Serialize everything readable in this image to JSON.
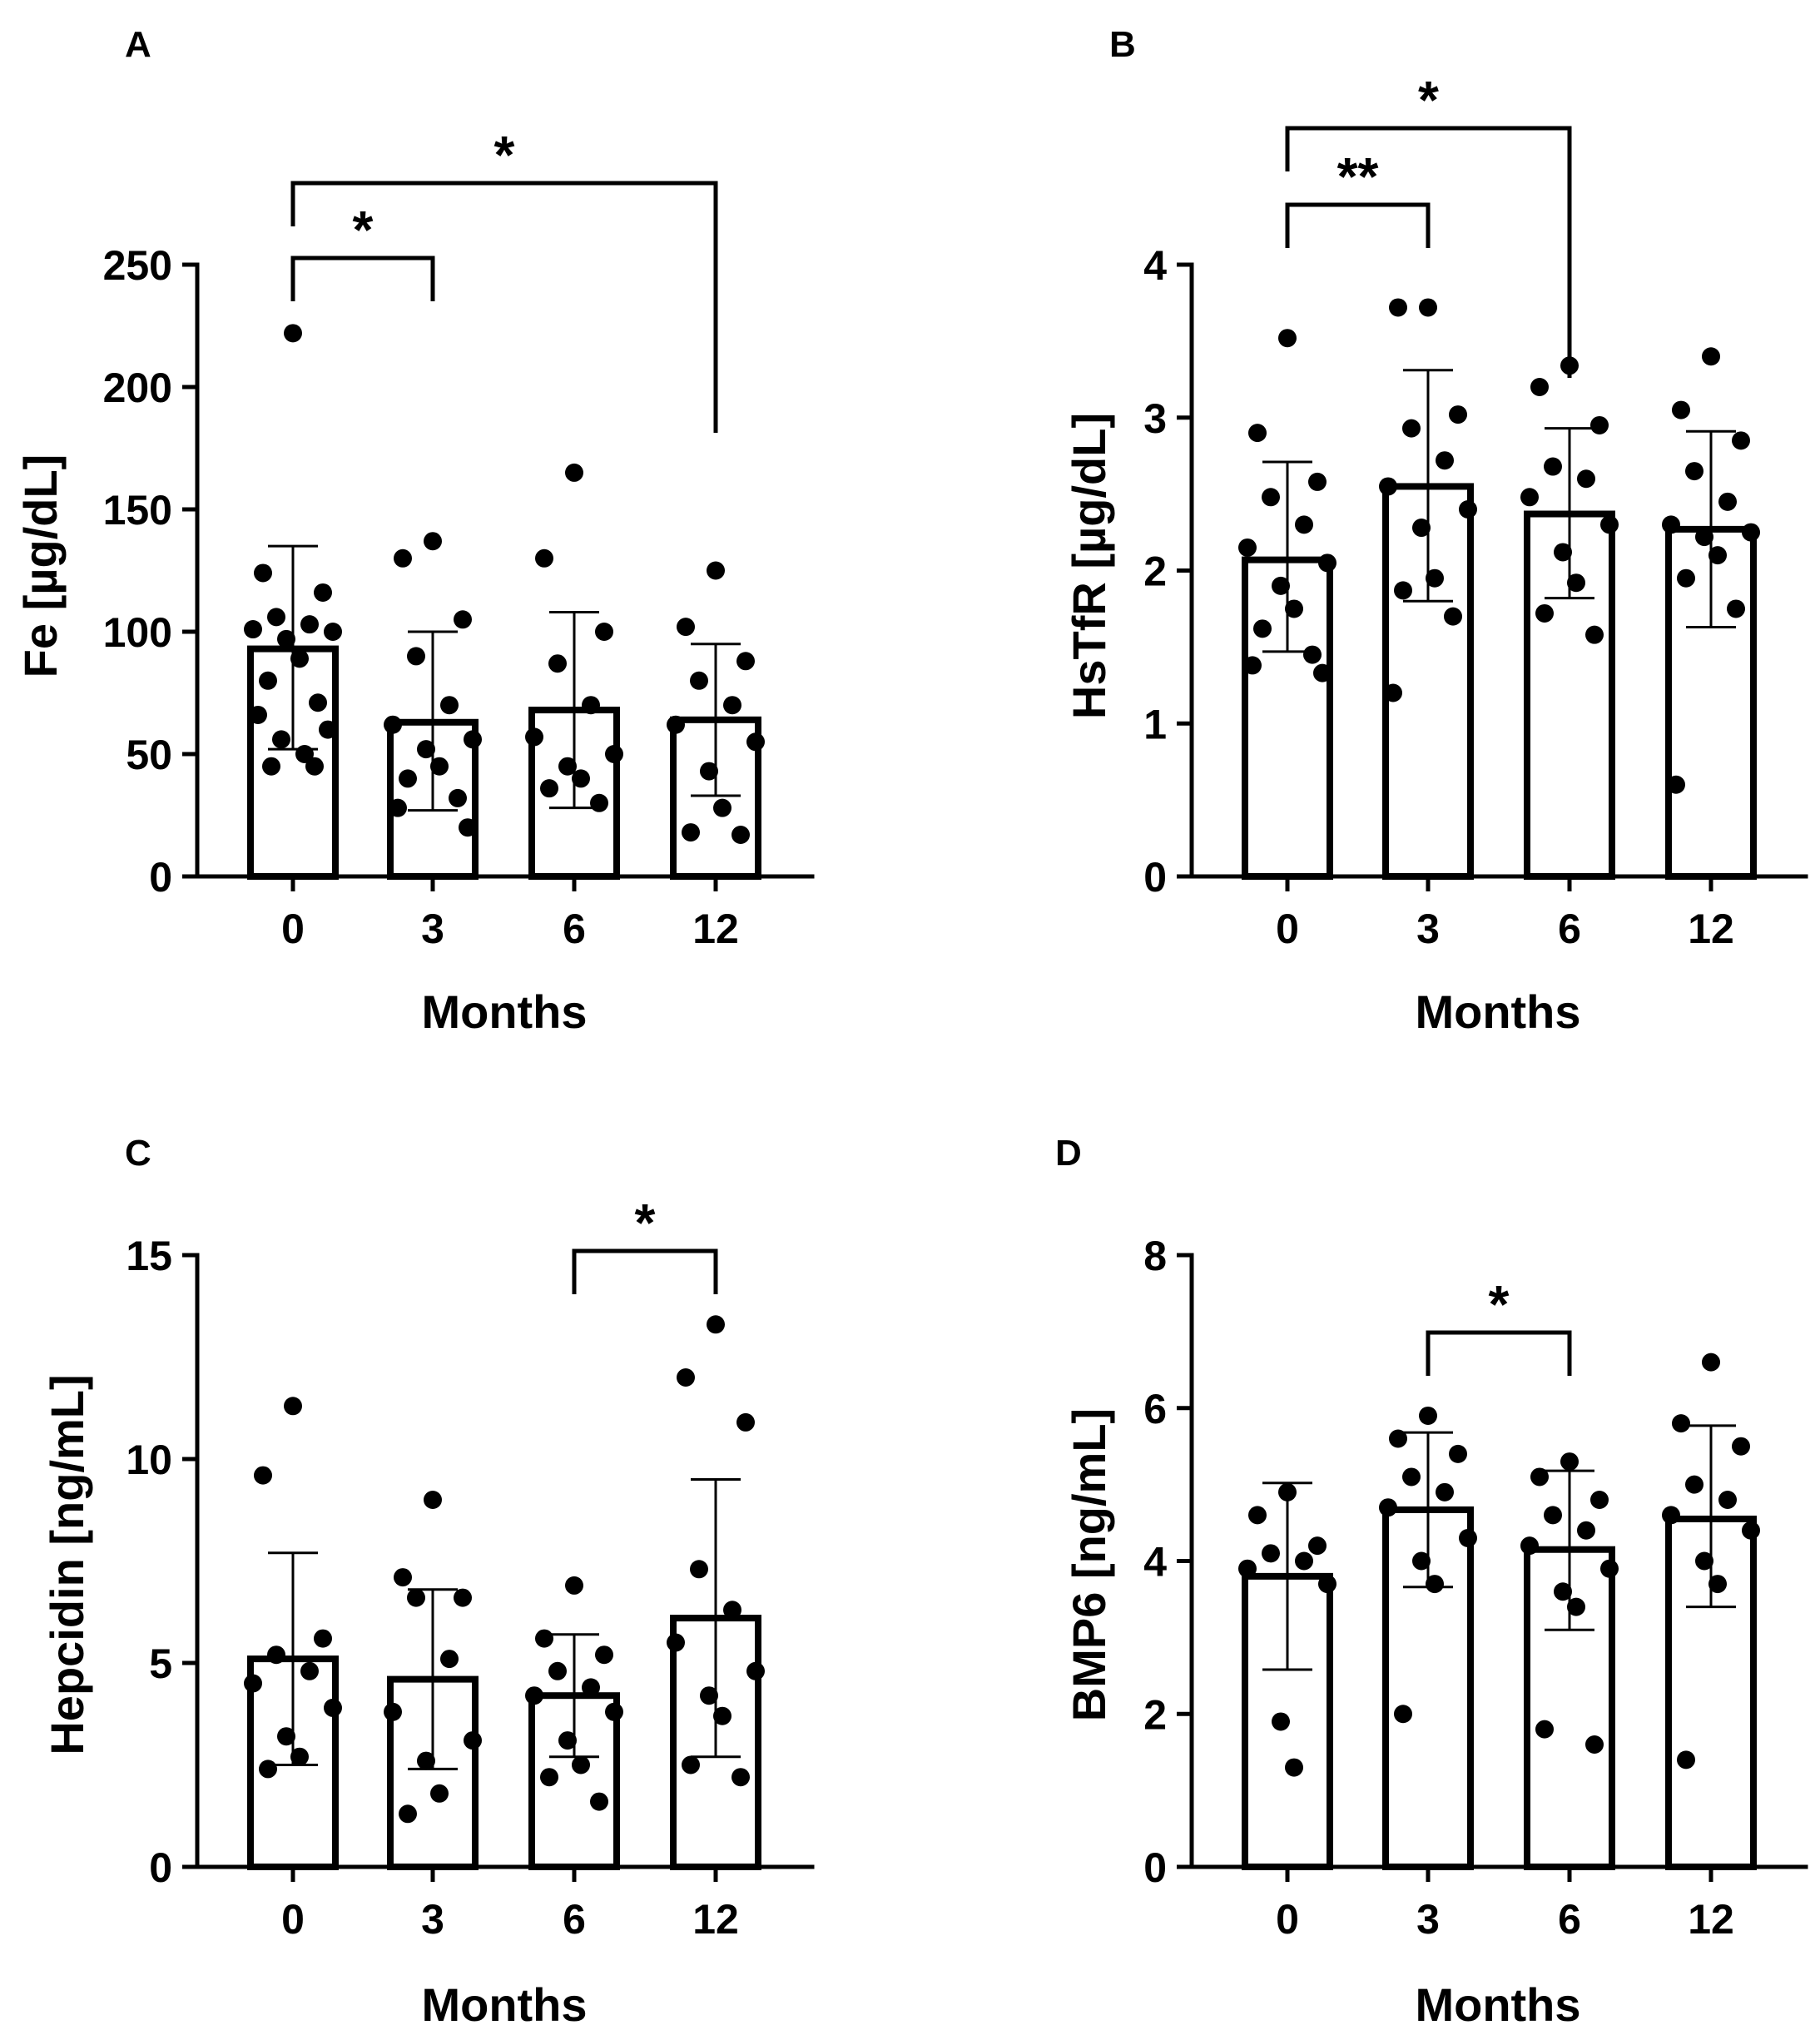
{
  "chart_data": [
    {
      "panel": "A",
      "type": "bar",
      "categories": [
        "0",
        "3",
        "6",
        "12"
      ],
      "xlabel": "Months",
      "ylabel": "Fe [µg/dL]",
      "ylim": [
        0,
        250
      ],
      "yticks": [
        "0",
        "50",
        "100",
        "150",
        "200",
        "250"
      ],
      "means": [
        93,
        63,
        68,
        64
      ],
      "sd": [
        [
          52,
          135
        ],
        [
          27,
          100
        ],
        [
          28,
          108
        ],
        [
          33,
          95
        ]
      ],
      "points": [
        [
          222,
          124,
          116,
          106,
          103,
          101,
          100,
          97,
          89,
          80,
          71,
          66,
          60,
          56,
          50,
          45,
          45
        ],
        [
          137,
          130,
          105,
          90,
          70,
          62,
          56,
          52,
          45,
          40,
          32,
          28,
          20
        ],
        [
          165,
          130,
          100,
          87,
          70,
          57,
          50,
          45,
          40,
          36,
          30
        ],
        [
          125,
          102,
          88,
          80,
          70,
          62,
          55,
          43,
          28,
          18,
          17
        ]
      ],
      "significance": [
        {
          "from": "0",
          "to": "3",
          "label": "*"
        },
        {
          "from": "0",
          "to": "12",
          "label": "*"
        }
      ]
    },
    {
      "panel": "B",
      "type": "bar",
      "categories": [
        "0",
        "3",
        "6",
        "12"
      ],
      "xlabel": "Months",
      "ylabel": "HsTfR [µg/dL]",
      "ylim": [
        0,
        4
      ],
      "yticks": [
        "0",
        "1",
        "2",
        "3",
        "4"
      ],
      "means": [
        2.07,
        2.55,
        2.37,
        2.27
      ],
      "sd": [
        [
          1.47,
          2.71
        ],
        [
          1.8,
          3.31
        ],
        [
          1.82,
          2.93
        ],
        [
          1.63,
          2.91
        ]
      ],
      "points": [
        [
          3.52,
          2.9,
          2.58,
          2.48,
          2.3,
          2.15,
          2.05,
          1.9,
          1.75,
          1.62,
          1.45,
          1.38,
          1.33
        ],
        [
          3.72,
          3.72,
          3.02,
          2.93,
          2.72,
          2.55,
          2.4,
          2.28,
          1.95,
          1.87,
          1.7,
          1.2
        ],
        [
          3.34,
          3.2,
          2.95,
          2.68,
          2.6,
          2.48,
          2.3,
          2.12,
          1.92,
          1.72,
          1.58
        ],
        [
          3.4,
          3.05,
          2.85,
          2.65,
          2.45,
          2.3,
          2.25,
          2.22,
          2.1,
          1.95,
          1.75,
          0.6
        ]
      ],
      "significance": [
        {
          "from": "0",
          "to": "3",
          "label": "**"
        },
        {
          "from": "0",
          "to": "6",
          "label": "*"
        }
      ]
    },
    {
      "panel": "C",
      "type": "bar",
      "categories": [
        "0",
        "3",
        "6",
        "12"
      ],
      "xlabel": "Months",
      "ylabel": "Hepcidin [ng/mL]",
      "ylim": [
        0,
        15
      ],
      "yticks": [
        "0",
        "5",
        "10",
        "15"
      ],
      "means": [
        5.1,
        4.6,
        4.2,
        6.1
      ],
      "sd": [
        [
          2.5,
          7.7
        ],
        [
          2.4,
          6.8
        ],
        [
          2.7,
          5.7
        ],
        [
          2.7,
          9.5
        ]
      ],
      "points": [
        [
          11.3,
          9.6,
          5.6,
          5.2,
          4.8,
          4.5,
          3.9,
          3.2,
          2.7,
          2.4
        ],
        [
          9.0,
          7.1,
          6.6,
          6.6,
          5.1,
          3.8,
          3.1,
          2.6,
          1.8,
          1.3
        ],
        [
          6.9,
          5.6,
          5.2,
          4.8,
          4.4,
          4.2,
          3.8,
          3.1,
          2.5,
          2.2,
          1.6
        ],
        [
          13.3,
          12.0,
          10.9,
          7.3,
          6.3,
          5.5,
          4.8,
          4.2,
          3.7,
          2.5,
          2.2
        ]
      ],
      "significance": [
        {
          "from": "6",
          "to": "12",
          "label": "*"
        }
      ]
    },
    {
      "panel": "D",
      "type": "bar",
      "categories": [
        "0",
        "3",
        "6",
        "12"
      ],
      "xlabel": "Months",
      "ylabel": "BMP6 [ng/mL]",
      "ylim": [
        0,
        8
      ],
      "yticks": [
        "0",
        "2",
        "4",
        "6",
        "8"
      ],
      "means": [
        3.8,
        4.67,
        4.15,
        4.55
      ],
      "sd": [
        [
          2.58,
          5.02
        ],
        [
          3.66,
          5.68
        ],
        [
          3.1,
          5.18
        ],
        [
          3.4,
          5.77
        ]
      ],
      "points": [
        [
          4.9,
          4.6,
          4.2,
          4.1,
          4.0,
          3.9,
          3.7,
          1.9,
          1.3
        ],
        [
          5.9,
          5.6,
          5.4,
          5.1,
          4.9,
          4.7,
          4.3,
          4.0,
          3.7,
          2.0
        ],
        [
          5.3,
          5.1,
          4.8,
          4.6,
          4.4,
          4.2,
          3.9,
          3.6,
          3.4,
          1.8,
          1.6
        ],
        [
          6.6,
          5.8,
          5.5,
          5.0,
          4.8,
          4.6,
          4.4,
          4.0,
          3.7,
          1.4
        ]
      ],
      "significance": [
        {
          "from": "3",
          "to": "6",
          "label": "*"
        }
      ]
    }
  ]
}
